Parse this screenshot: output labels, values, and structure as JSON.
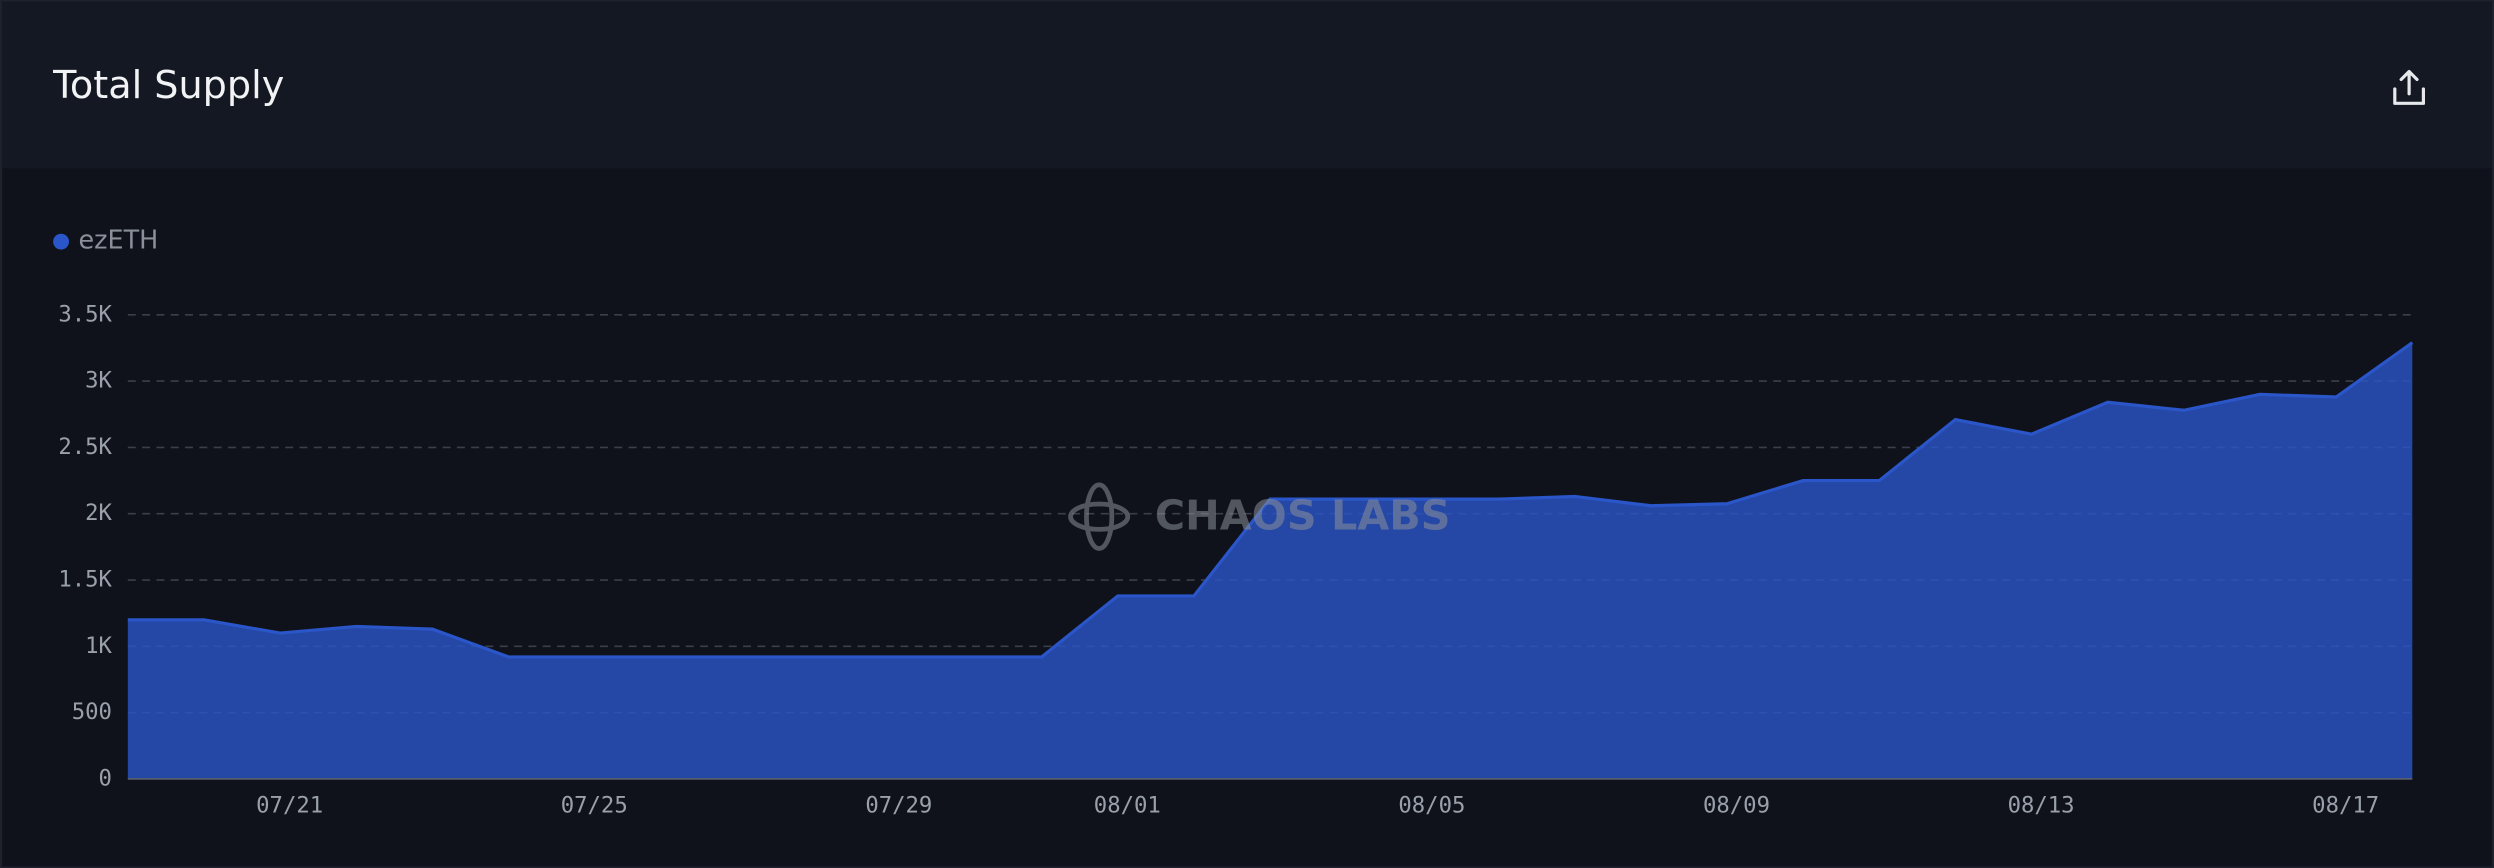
{
  "chart_data": {
    "type": "area",
    "title": "Total Supply",
    "watermark": "CHAOS LABS",
    "categories": [
      null,
      null,
      "07/21",
      null,
      null,
      null,
      "07/25",
      null,
      null,
      null,
      "07/29",
      null,
      null,
      "08/01",
      null,
      null,
      null,
      "08/05",
      null,
      null,
      null,
      "08/09",
      null,
      null,
      null,
      "08/13",
      null,
      null,
      null,
      "08/17",
      null
    ],
    "series": [
      {
        "name": "ezETH",
        "color": "#2a56c9",
        "values": [
          1200,
          1200,
          1100,
          1150,
          1130,
          920,
          920,
          920,
          920,
          920,
          920,
          920,
          920,
          1380,
          1380,
          2110,
          2110,
          2110,
          2110,
          2130,
          2060,
          2075,
          2250,
          2250,
          2710,
          2600,
          2840,
          2780,
          2900,
          2880,
          3290
        ]
      }
    ],
    "ylim": [
      0,
      3500
    ],
    "yticks": [
      0,
      500,
      {
        "value": 1000,
        "label": "1K"
      },
      {
        "value": 1500,
        "label": "1.5K"
      },
      {
        "value": 2000,
        "label": "2K"
      },
      {
        "value": 2500,
        "label": "2.5K"
      },
      {
        "value": 3000,
        "label": "3K"
      },
      {
        "value": 3500,
        "label": "3.5K"
      }
    ],
    "grid": true
  }
}
